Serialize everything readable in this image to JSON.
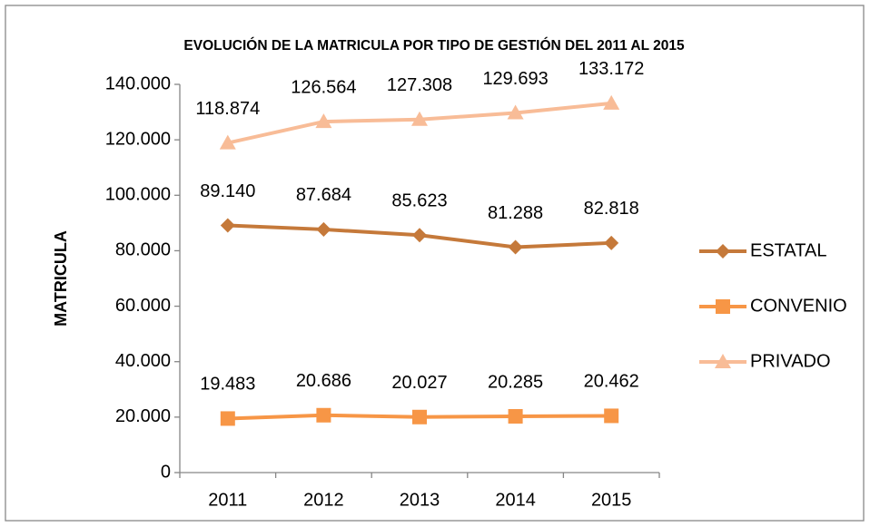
{
  "chart_data": {
    "type": "line",
    "title": "EVOLUCIÓN DE LA MATRICULA  POR TIPO DE GESTIÓN DEL 2011 AL 2015",
    "y_label": "MATRICULA",
    "categories": [
      "2011",
      "2012",
      "2013",
      "2014",
      "2015"
    ],
    "series": [
      {
        "name": "ESTATAL",
        "color": "#c5793a",
        "marker": "diamond",
        "values": [
          89140,
          87684,
          85623,
          81288,
          82818
        ],
        "value_labels": [
          "89.140",
          "87.684",
          "85.623",
          "81.288",
          "82.818"
        ]
      },
      {
        "name": "CONVENIO",
        "color": "#f79646",
        "marker": "square",
        "values": [
          19483,
          20686,
          20027,
          20285,
          20462
        ],
        "value_labels": [
          "19.483",
          "20.686",
          "20.027",
          "20.285",
          "20.462"
        ]
      },
      {
        "name": "PRIVADO",
        "color": "#f8bc97",
        "marker": "triangle",
        "values": [
          118874,
          126564,
          127308,
          129693,
          133172
        ],
        "value_labels": [
          "118.874",
          "126.564",
          "127.308",
          "129.693",
          "133.172"
        ]
      }
    ],
    "ylim": [
      0,
      140000
    ],
    "yticks": [
      0,
      {
        "value": 20000,
        "label": "20.000"
      },
      {
        "value": 40000,
        "label": "40.000"
      },
      {
        "value": 60000,
        "label": "60.000"
      },
      {
        "value": 80000,
        "label": "80.000"
      },
      {
        "value": 100000,
        "label": "100.000"
      },
      {
        "value": 120000,
        "label": "120.000"
      },
      {
        "value": 140000,
        "label": "140.000"
      }
    ],
    "legend": "right"
  }
}
